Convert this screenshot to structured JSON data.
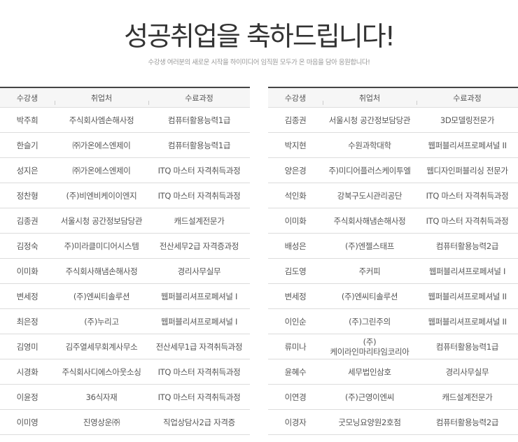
{
  "header": {
    "title": "성공취업을 축하드립니다!",
    "subtitle": "수강생 여러분의 새로운 시작을 하이미디어 임직원 모두가 온 마음을 담아 응원합니다!"
  },
  "columns": [
    "수강생",
    "취업처",
    "수료과정"
  ],
  "left_table": [
    [
      "박주희",
      "주식회사엠손해사정",
      "컴퓨터활용능력1급"
    ],
    [
      "한슬기",
      "㈜가온에스엔제이",
      "컴퓨터활용능력1급"
    ],
    [
      "성지은",
      "㈜가온에스엔제이",
      "ITQ 마스터 자격취득과정"
    ],
    [
      "정찬형",
      "(주)비엔비케이이엔지",
      "ITQ 마스터 자격취득과정"
    ],
    [
      "김종권",
      "서울시청 공간정보담당관",
      "캐드설계전문가"
    ],
    [
      "김정숙",
      "주)미라클미디어시스템",
      "전산세무2급 자격증과정"
    ],
    [
      "이미화",
      "주식회사해냄손해사정",
      "경리사무실무"
    ],
    [
      "변세정",
      "(주)엔씨티솔루션",
      "웹퍼블리셔프로페셔널 I"
    ],
    [
      "최은정",
      "(주)누리고",
      "웹퍼블리셔프로페셔널 I"
    ],
    [
      "김영미",
      "김주열세무회계사무소",
      "전산세무1급 자격취득과정"
    ],
    [
      "시경화",
      "주식회사디에스아웃소싱",
      "ITQ 마스터 자격취득과정"
    ],
    [
      "이윤정",
      "36식자재",
      "ITQ 마스터 자격취득과정"
    ],
    [
      "이미영",
      "진영상운㈜",
      "직업상담사2급 자격증"
    ]
  ],
  "right_table": [
    [
      "김종권",
      "서울시청 공간정보담당관",
      "3D모델링전문가"
    ],
    [
      "박지현",
      "수원과학대학",
      "웹퍼블리셔프로페셔널 II"
    ],
    [
      "양은경",
      "주)미디어플러스케이투엘",
      "웹디자인퍼블리싱 전문가"
    ],
    [
      "석인화",
      "강북구도시관리공단",
      "ITQ 마스터 자격취득과정"
    ],
    [
      "이미화",
      "주식회사해냄손해사정",
      "ITQ 마스터 자격취득과정"
    ],
    [
      "배성은",
      "(주)엔젤스태프",
      "컴퓨터활용능력2급"
    ],
    [
      "김도영",
      "주커피",
      "웹퍼블리셔프로페셔널 I"
    ],
    [
      "변세정",
      "(주)엔씨티솔루션",
      "웹퍼블리셔프로페셔널 II"
    ],
    [
      "이인순",
      "(주)그린주의",
      "웹퍼블리셔프로페셔널 II"
    ],
    [
      "류미나",
      "(주)케이라인마리타임코리아",
      "컴퓨터활용능력1급"
    ],
    [
      "윤혜수",
      "세무법인삼호",
      "경리사무실무"
    ],
    [
      "이연경",
      "(주)근영이엔씨",
      "캐드설계전문가"
    ],
    [
      "이경자",
      "굿모닝요양원2호점",
      "컴퓨터활용능력2급"
    ]
  ]
}
